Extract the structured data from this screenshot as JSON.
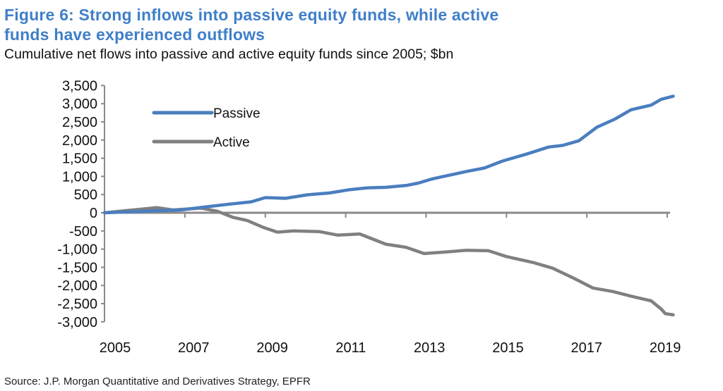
{
  "title_line1": "Figure 6: Strong inflows into passive equity funds, while active",
  "title_line2": "funds have experienced outflows",
  "subtitle": "Cumulative net flows into passive and active equity funds since 2005; $bn",
  "source": "Source: J.P. Morgan Quantitative and Derivatives Strategy, EPFR",
  "chart_data": {
    "type": "line",
    "title": "Figure 6: Strong inflows into passive equity funds, while active funds have experienced outflows",
    "subtitle": "Cumulative net flows into passive and active equity funds since 2005; $bn",
    "xlabel": "",
    "ylabel": "",
    "xlim": [
      2005,
      2019.2
    ],
    "ylim": [
      -3000,
      3500
    ],
    "x_ticks": [
      "2005",
      "2007",
      "2009",
      "2011",
      "2013",
      "2015",
      "2017",
      "2019"
    ],
    "y_ticks": [
      "3,500",
      "3,000",
      "2,500",
      "2,000",
      "1,500",
      "1,000",
      "500",
      "0",
      "-500",
      "-1,000",
      "-1,500",
      "-2,000",
      "-2,500",
      "-3,000"
    ],
    "grid": false,
    "legend_position": "top-left",
    "series": [
      {
        "name": "Passive",
        "color": "#4a7ebf",
        "points": [
          [
            2005,
            0
          ],
          [
            2006.9,
            77
          ],
          [
            2007.6,
            173
          ],
          [
            2008.1,
            237
          ],
          [
            2008.65,
            300
          ],
          [
            2009.0,
            417
          ],
          [
            2009.5,
            397
          ],
          [
            2010.05,
            494
          ],
          [
            2010.6,
            545
          ],
          [
            2011.1,
            635
          ],
          [
            2011.55,
            686
          ],
          [
            2012.0,
            700
          ],
          [
            2012.5,
            750
          ],
          [
            2012.8,
            814
          ],
          [
            2013.15,
            930
          ],
          [
            2013.6,
            1038
          ],
          [
            2014.0,
            1135
          ],
          [
            2014.45,
            1230
          ],
          [
            2014.9,
            1423
          ],
          [
            2015.5,
            1615
          ],
          [
            2016.05,
            1808
          ],
          [
            2016.4,
            1852
          ],
          [
            2016.8,
            1980
          ],
          [
            2017.25,
            2352
          ],
          [
            2017.7,
            2577
          ],
          [
            2018.1,
            2833
          ],
          [
            2018.6,
            2961
          ],
          [
            2018.85,
            3122
          ],
          [
            2019.15,
            3205
          ]
        ]
      },
      {
        "name": "Active",
        "color": "#808080",
        "points": [
          [
            2005,
            0
          ],
          [
            2006.3,
            141
          ],
          [
            2006.7,
            77
          ],
          [
            2007.4,
            128
          ],
          [
            2007.8,
            45
          ],
          [
            2008.2,
            -128
          ],
          [
            2008.55,
            -212
          ],
          [
            2008.95,
            -404
          ],
          [
            2009.3,
            -532
          ],
          [
            2009.7,
            -500
          ],
          [
            2010.35,
            -519
          ],
          [
            2010.8,
            -615
          ],
          [
            2011.35,
            -583
          ],
          [
            2012.0,
            -865
          ],
          [
            2012.5,
            -949
          ],
          [
            2012.95,
            -1122
          ],
          [
            2013.5,
            -1077
          ],
          [
            2014.0,
            -1032
          ],
          [
            2014.55,
            -1045
          ],
          [
            2015.0,
            -1205
          ],
          [
            2015.65,
            -1365
          ],
          [
            2016.15,
            -1526
          ],
          [
            2016.7,
            -1814
          ],
          [
            2017.15,
            -2070
          ],
          [
            2017.65,
            -2167
          ],
          [
            2018.1,
            -2295
          ],
          [
            2018.6,
            -2423
          ],
          [
            2018.85,
            -2647
          ],
          [
            2018.95,
            -2776
          ],
          [
            2019.15,
            -2808
          ]
        ]
      }
    ]
  }
}
